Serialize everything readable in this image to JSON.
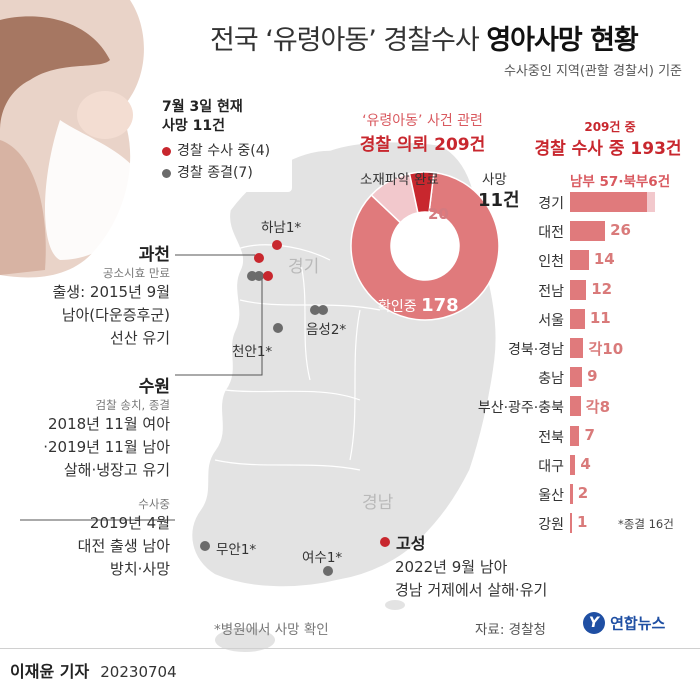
{
  "header": {
    "title_part1": "전국 ‘유령아동’ 경찰수사 ",
    "title_part2": "영아사망 현황",
    "subtitle": "수사중인 지역(관할 경찰서) 기준"
  },
  "legend": {
    "line1": "7월 3일 현재",
    "line2": "사망 11건",
    "red_label": "경찰 수사 중(4)",
    "gray_label": "경찰 종결(7)",
    "red_color": "#c8272e",
    "gray_color": "#6b6b6b"
  },
  "donut": {
    "heading1": "‘유령아동’ 사건 관련",
    "heading2": "경찰 의뢰 209건",
    "missing_label": "소재파악 완료",
    "missing_value": "20",
    "death_label": "사망",
    "death_value": "11건",
    "confirming_label": "확인중",
    "confirming_value": "178",
    "colors": {
      "confirming": "#e07a7c",
      "missing": "#f2c8cc",
      "death": "#c8272e"
    }
  },
  "chart_data": {
    "type": "bar",
    "title_small": "209건 중",
    "title": "경찰 수사 중 193건",
    "annotation": "남부 57·북부6건",
    "categories": [
      "경기",
      "대전",
      "인천",
      "전남",
      "서울",
      "경북·경남",
      "충남",
      "부산·광주·충북",
      "전북",
      "대구",
      "울산",
      "강원"
    ],
    "values": [
      63,
      26,
      14,
      12,
      11,
      10,
      9,
      8,
      7,
      4,
      2,
      1
    ],
    "value_labels": [
      "",
      "26",
      "14",
      "12",
      "11",
      "각10",
      "9",
      "각8",
      "7",
      "4",
      "2",
      "1"
    ],
    "gyeonggi_split": {
      "south": 57,
      "north": 6
    },
    "footnote": "*종결 16건",
    "bar_color": "#e07a7c",
    "bar_light_color": "#f2c8cc"
  },
  "map": {
    "region_gyeonggi": "경기",
    "region_gyeongnam": "경남",
    "places": {
      "hanam": "하남1*",
      "eumseong": "음성2*",
      "cheonan": "천안1*",
      "muan": "무안1*",
      "yeosu": "여수1*",
      "goseong": "고성"
    },
    "note": "*병원에서 사망 확인"
  },
  "cases": {
    "gwacheon": {
      "title": "과천",
      "tag": "공소시효 만료",
      "desc1": "출생: 2015년 9월",
      "desc2": "남아(다운증후군)",
      "desc3": "선산 유기"
    },
    "suwon": {
      "title": "수원",
      "tag": "검찰 송치, 종결",
      "desc1": "2018년 11월 여아",
      "desc2": "·2019년 11월 남아",
      "desc3": "살해·냉장고 유기",
      "tag2": "수사중",
      "desc4": "2019년 4월",
      "desc5": "대전 출생 남아",
      "desc6": "방치·사망"
    },
    "goseong": {
      "desc1": "2022년 9월 남아",
      "desc2": "경남 거제에서 살해·유기"
    }
  },
  "footer": {
    "source": "자료: 경찰청",
    "brand": "연합뉴스",
    "byline": "이재윤 기자",
    "date": "20230704"
  }
}
